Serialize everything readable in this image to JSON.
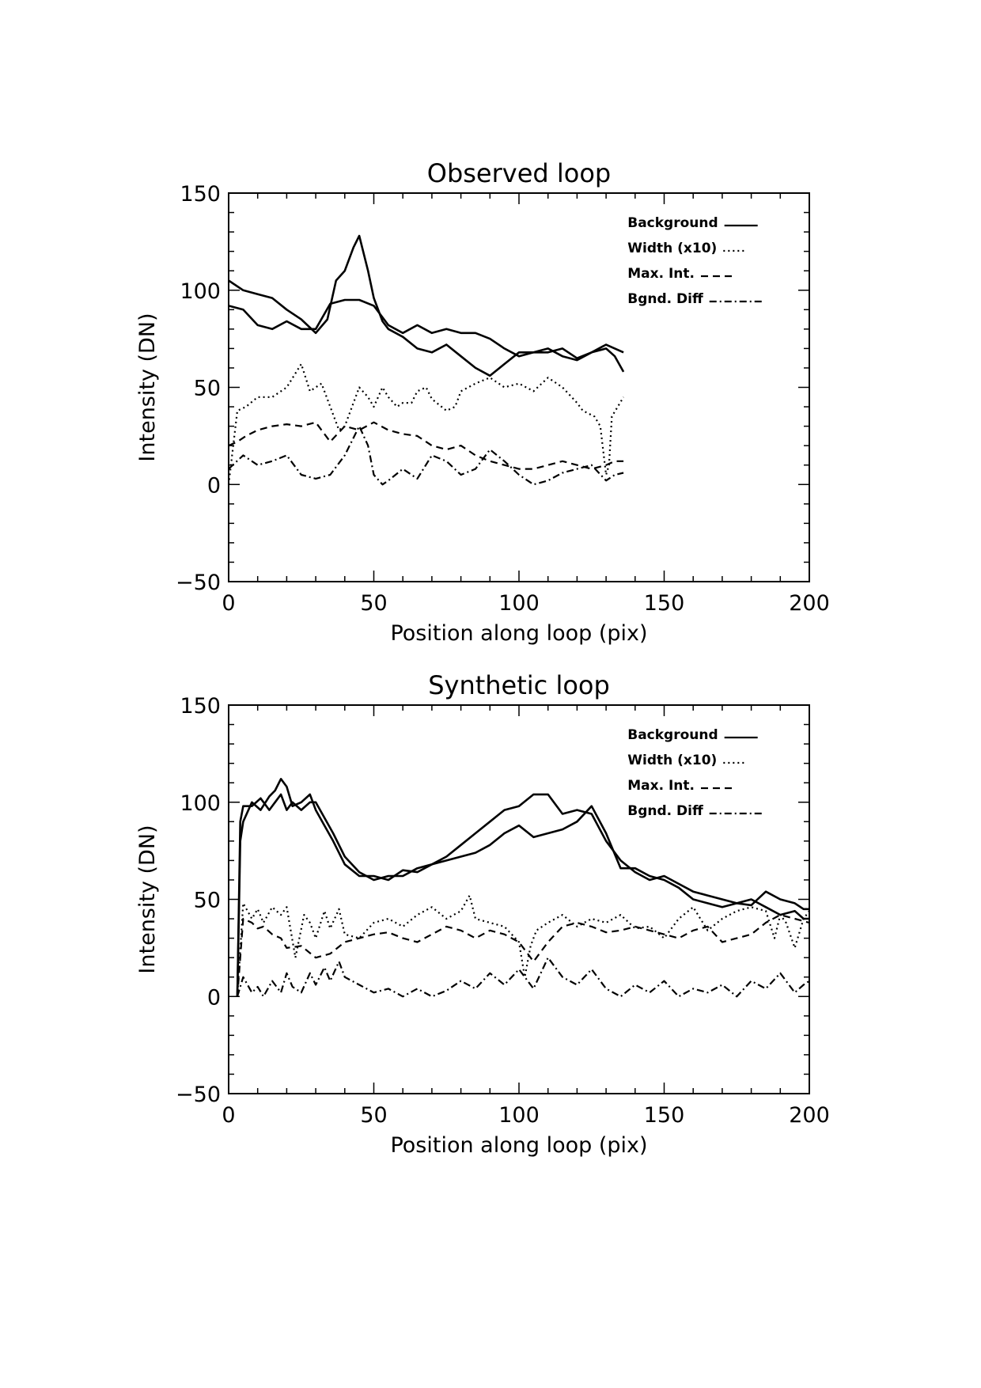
{
  "chart_data": [
    {
      "type": "line",
      "title": "Observed loop",
      "xlabel": "Position along loop (pix)",
      "ylabel": "Intensity (DN)",
      "xlim": [
        0,
        200
      ],
      "ylim": [
        -50,
        150
      ],
      "x_ticks": [
        0,
        50,
        100,
        150,
        200
      ],
      "y_ticks": [
        -50,
        0,
        50,
        100,
        150
      ],
      "x_tick_labels": [
        "0",
        "50",
        "100",
        "150",
        "200"
      ],
      "y_tick_labels": [
        "−50",
        "0",
        "50",
        "100",
        "150"
      ],
      "legend_position": "top-right",
      "legend": [
        {
          "label": "Background",
          "sample": "solid"
        },
        {
          "label": "Width (x10)",
          "sample": "dotted"
        },
        {
          "label": "Max. Int.",
          "sample": "dashed"
        },
        {
          "label": "Bgnd. Diff",
          "sample": "dashdot"
        }
      ],
      "series": [
        {
          "style": "solid",
          "x": [
            0,
            5,
            10,
            15,
            20,
            25,
            30,
            34,
            37,
            40,
            43,
            45,
            48,
            50,
            53,
            55,
            60,
            65,
            70,
            75,
            80,
            85,
            90,
            95,
            100,
            105,
            110,
            115,
            120,
            125,
            130,
            133,
            136
          ],
          "y": [
            105,
            100,
            98,
            96,
            90,
            85,
            78,
            85,
            105,
            110,
            122,
            128,
            110,
            96,
            84,
            80,
            76,
            70,
            68,
            72,
            66,
            60,
            56,
            62,
            68,
            68,
            70,
            66,
            64,
            68,
            70,
            66,
            58
          ]
        },
        {
          "style": "solid",
          "x": [
            0,
            5,
            10,
            15,
            20,
            25,
            30,
            35,
            40,
            45,
            50,
            55,
            60,
            65,
            70,
            75,
            80,
            85,
            90,
            95,
            100,
            105,
            110,
            115,
            120,
            125,
            130,
            133,
            136
          ],
          "y": [
            92,
            90,
            82,
            80,
            84,
            80,
            80,
            93,
            95,
            95,
            92,
            82,
            78,
            82,
            78,
            80,
            78,
            78,
            75,
            70,
            66,
            68,
            68,
            70,
            65,
            68,
            72,
            70,
            68
          ]
        },
        {
          "style": "dotted",
          "x": [
            0,
            3,
            6,
            10,
            15,
            20,
            25,
            28,
            32,
            35,
            38,
            40,
            42,
            45,
            48,
            50,
            53,
            55,
            58,
            60,
            63,
            65,
            68,
            70,
            75,
            78,
            80,
            85,
            90,
            95,
            100,
            105,
            110,
            115,
            120,
            122,
            126,
            128,
            130,
            131,
            132,
            134,
            136
          ],
          "y": [
            0,
            38,
            40,
            45,
            45,
            50,
            62,
            48,
            52,
            40,
            28,
            30,
            38,
            50,
            45,
            40,
            50,
            45,
            40,
            42,
            42,
            48,
            50,
            44,
            38,
            40,
            48,
            52,
            55,
            50,
            52,
            48,
            55,
            50,
            42,
            38,
            35,
            30,
            5,
            10,
            35,
            40,
            45
          ]
        },
        {
          "style": "dashed",
          "x": [
            0,
            3,
            6,
            10,
            15,
            20,
            25,
            30,
            35,
            40,
            45,
            50,
            55,
            60,
            65,
            70,
            75,
            80,
            85,
            90,
            95,
            100,
            105,
            110,
            115,
            120,
            125,
            130,
            133,
            136
          ],
          "y": [
            20,
            22,
            25,
            28,
            30,
            31,
            30,
            32,
            22,
            30,
            28,
            32,
            28,
            26,
            25,
            20,
            18,
            20,
            15,
            12,
            10,
            8,
            8,
            10,
            12,
            10,
            8,
            10,
            12,
            12
          ]
        },
        {
          "style": "dashdot",
          "x": [
            0,
            5,
            10,
            15,
            20,
            25,
            30,
            35,
            40,
            45,
            48,
            50,
            53,
            55,
            60,
            65,
            70,
            75,
            80,
            85,
            90,
            95,
            100,
            105,
            110,
            115,
            120,
            125,
            130,
            133,
            136
          ],
          "y": [
            8,
            15,
            10,
            12,
            15,
            5,
            3,
            5,
            15,
            30,
            20,
            5,
            0,
            2,
            8,
            3,
            15,
            12,
            5,
            8,
            18,
            12,
            5,
            0,
            2,
            6,
            8,
            10,
            2,
            5,
            6
          ]
        }
      ]
    },
    {
      "type": "line",
      "title": "Synthetic loop",
      "xlabel": "Position along loop (pix)",
      "ylabel": "Intensity (DN)",
      "xlim": [
        0,
        200
      ],
      "ylim": [
        -50,
        150
      ],
      "x_ticks": [
        0,
        50,
        100,
        150,
        200
      ],
      "y_ticks": [
        -50,
        0,
        50,
        100,
        150
      ],
      "x_tick_labels": [
        "0",
        "50",
        "100",
        "150",
        "200"
      ],
      "y_tick_labels": [
        "−50",
        "0",
        "50",
        "100",
        "150"
      ],
      "legend_position": "top-right",
      "legend": [
        {
          "label": "Background",
          "sample": "solid"
        },
        {
          "label": "Width (x10)",
          "sample": "dotted"
        },
        {
          "label": "Max. Int.",
          "sample": "dashed"
        },
        {
          "label": "Bgnd. Diff",
          "sample": "dashdot"
        }
      ],
      "series": [
        {
          "style": "solid",
          "x": [
            3,
            4,
            5,
            8,
            11,
            14,
            16,
            18,
            20,
            22,
            25,
            28,
            30,
            33,
            36,
            40,
            45,
            50,
            55,
            60,
            65,
            70,
            75,
            80,
            85,
            90,
            95,
            100,
            105,
            110,
            115,
            120,
            125,
            130,
            135,
            140,
            145,
            150,
            155,
            160,
            165,
            170,
            175,
            180,
            185,
            190,
            195,
            198,
            200
          ],
          "y": [
            0,
            80,
            90,
            100,
            96,
            103,
            106,
            112,
            108,
            98,
            100,
            104,
            96,
            88,
            80,
            68,
            62,
            62,
            60,
            65,
            64,
            68,
            72,
            78,
            84,
            90,
            96,
            98,
            104,
            104,
            94,
            96,
            94,
            80,
            70,
            64,
            60,
            62,
            58,
            54,
            52,
            50,
            48,
            47,
            54,
            50,
            48,
            45,
            45
          ]
        },
        {
          "style": "solid",
          "x": [
            3,
            4,
            5,
            8,
            11,
            14,
            16,
            18,
            20,
            22,
            25,
            28,
            30,
            33,
            36,
            40,
            45,
            50,
            55,
            60,
            65,
            70,
            75,
            80,
            85,
            90,
            95,
            100,
            105,
            110,
            115,
            120,
            125,
            130,
            135,
            140,
            145,
            150,
            155,
            160,
            165,
            170,
            175,
            180,
            185,
            190,
            195,
            198,
            200
          ],
          "y": [
            0,
            90,
            98,
            98,
            102,
            96,
            100,
            104,
            96,
            100,
            96,
            100,
            100,
            92,
            84,
            72,
            64,
            60,
            62,
            62,
            66,
            68,
            70,
            72,
            74,
            78,
            84,
            88,
            82,
            84,
            86,
            90,
            98,
            84,
            66,
            66,
            62,
            60,
            56,
            50,
            48,
            46,
            48,
            50,
            46,
            42,
            44,
            40,
            40
          ]
        },
        {
          "style": "dotted",
          "x": [
            3,
            5,
            8,
            10,
            12,
            15,
            18,
            20,
            23,
            26,
            28,
            30,
            33,
            35,
            38,
            40,
            45,
            50,
            55,
            60,
            65,
            70,
            75,
            80,
            83,
            85,
            90,
            95,
            100,
            102,
            104,
            106,
            110,
            115,
            120,
            125,
            130,
            135,
            140,
            145,
            150,
            155,
            160,
            165,
            170,
            175,
            180,
            185,
            188,
            190,
            192,
            195,
            198,
            200
          ],
          "y": [
            0,
            48,
            40,
            45,
            38,
            46,
            42,
            46,
            20,
            42,
            38,
            30,
            44,
            35,
            45,
            32,
            30,
            38,
            40,
            36,
            42,
            46,
            40,
            44,
            52,
            40,
            38,
            36,
            28,
            10,
            26,
            34,
            38,
            42,
            36,
            40,
            38,
            42,
            35,
            36,
            30,
            40,
            46,
            34,
            40,
            44,
            46,
            44,
            30,
            42,
            38,
            25,
            40,
            44
          ]
        },
        {
          "style": "dashed",
          "x": [
            3,
            5,
            8,
            10,
            12,
            15,
            18,
            20,
            25,
            30,
            35,
            40,
            45,
            50,
            55,
            60,
            65,
            70,
            75,
            80,
            85,
            90,
            95,
            100,
            105,
            110,
            115,
            120,
            125,
            130,
            135,
            140,
            145,
            150,
            155,
            160,
            165,
            170,
            175,
            180,
            185,
            190,
            195,
            200
          ],
          "y": [
            0,
            40,
            38,
            35,
            36,
            32,
            30,
            25,
            26,
            20,
            22,
            28,
            30,
            32,
            33,
            30,
            28,
            32,
            36,
            34,
            30,
            34,
            32,
            28,
            18,
            28,
            36,
            38,
            36,
            33,
            34,
            36,
            34,
            32,
            30,
            34,
            36,
            28,
            30,
            32,
            38,
            42,
            40,
            38
          ]
        },
        {
          "style": "dashdot",
          "x": [
            3,
            5,
            8,
            10,
            12,
            15,
            18,
            20,
            22,
            25,
            28,
            30,
            33,
            35,
            38,
            40,
            45,
            50,
            55,
            60,
            65,
            70,
            75,
            80,
            85,
            90,
            95,
            100,
            105,
            110,
            115,
            120,
            125,
            130,
            135,
            140,
            145,
            150,
            155,
            160,
            165,
            170,
            175,
            180,
            185,
            190,
            195,
            198,
            200
          ],
          "y": [
            0,
            10,
            2,
            5,
            0,
            8,
            2,
            12,
            5,
            2,
            12,
            6,
            15,
            8,
            18,
            10,
            6,
            2,
            4,
            0,
            4,
            0,
            3,
            8,
            4,
            12,
            6,
            14,
            4,
            20,
            10,
            6,
            14,
            4,
            0,
            6,
            2,
            8,
            0,
            4,
            2,
            6,
            0,
            8,
            4,
            12,
            2,
            6,
            8
          ]
        }
      ]
    }
  ]
}
